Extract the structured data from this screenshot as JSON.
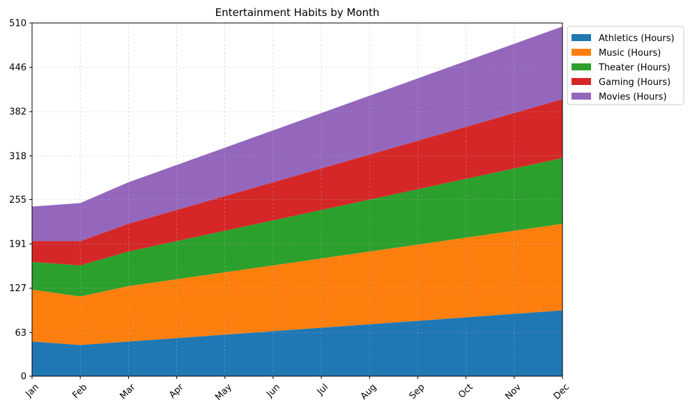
{
  "chart_data": {
    "type": "area",
    "stacked": true,
    "title": "Entertainment Habits by Month",
    "xlabel": "",
    "ylabel": "",
    "categories": [
      "Jan",
      "Feb",
      "Mar",
      "Apr",
      "May",
      "Jun",
      "Jul",
      "Aug",
      "Sep",
      "Oct",
      "Nov",
      "Dec"
    ],
    "ylim": [
      0,
      510
    ],
    "yticks": [
      "0",
      "63",
      "127",
      "191",
      "255",
      "318",
      "382",
      "446",
      "510"
    ],
    "grid": true,
    "legend_position": "outside-top-right",
    "series": [
      {
        "name": "Athletics (Hours)",
        "color": "#1f77b4",
        "values": [
          50,
          45,
          50,
          55,
          60,
          65,
          70,
          75,
          80,
          85,
          90,
          95
        ]
      },
      {
        "name": "Music (Hours)",
        "color": "#ff7f0e",
        "values": [
          75,
          70,
          80,
          85,
          90,
          95,
          100,
          105,
          110,
          115,
          120,
          125
        ]
      },
      {
        "name": "Theater (Hours)",
        "color": "#2ca02c",
        "values": [
          40,
          45,
          50,
          55,
          60,
          65,
          70,
          75,
          80,
          85,
          90,
          95
        ]
      },
      {
        "name": "Gaming (Hours)",
        "color": "#d62728",
        "values": [
          30,
          35,
          40,
          45,
          50,
          55,
          60,
          65,
          70,
          75,
          80,
          85
        ]
      },
      {
        "name": "Movies (Hours)",
        "color": "#9467bd",
        "values": [
          50,
          55,
          60,
          65,
          70,
          75,
          80,
          85,
          90,
          95,
          100,
          105
        ]
      }
    ]
  }
}
